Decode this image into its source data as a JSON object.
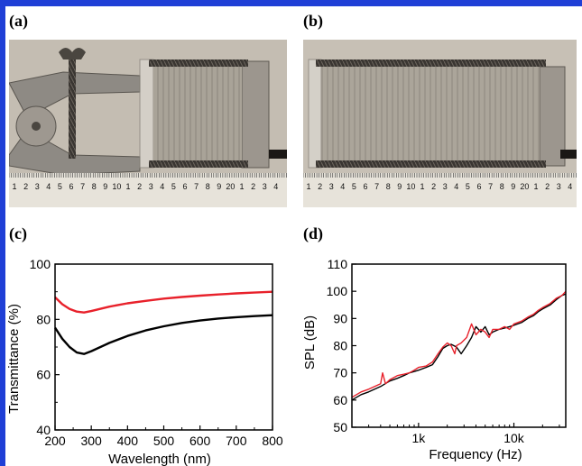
{
  "panels": {
    "a": "(a)",
    "b": "(b)",
    "c": "(c)",
    "d": "(d)"
  },
  "ruler_labels": [
    "1",
    "2",
    "3",
    "4",
    "5",
    "6",
    "7",
    "8",
    "9",
    "10",
    "1",
    "2",
    "3",
    "4",
    "5",
    "6",
    "7",
    "8",
    "9",
    "20",
    "1",
    "2",
    "3",
    "4"
  ],
  "colors": {
    "frame": "#1f3fd6",
    "red": "#e8212b",
    "black": "#000000"
  },
  "chart_data": [
    {
      "type": "line",
      "panel": "(c)",
      "title": "",
      "xlabel": "Wavelength (nm)",
      "ylabel": "Transmittance (%)",
      "xlim": [
        200,
        800
      ],
      "ylim": [
        40,
        100
      ],
      "xticks": [
        200,
        300,
        400,
        500,
        600,
        700,
        800
      ],
      "yticks": [
        40,
        60,
        80,
        100
      ],
      "grid": false,
      "series": [
        {
          "color": "#e8212b",
          "x": [
            200,
            220,
            240,
            260,
            280,
            300,
            350,
            400,
            450,
            500,
            550,
            600,
            650,
            700,
            750,
            800
          ],
          "y": [
            88,
            85.5,
            83.8,
            82.8,
            82.5,
            83.0,
            84.6,
            85.8,
            86.7,
            87.5,
            88.1,
            88.6,
            89.0,
            89.4,
            89.7,
            90.0
          ]
        },
        {
          "color": "#000000",
          "x": [
            200,
            220,
            240,
            260,
            280,
            300,
            350,
            400,
            450,
            500,
            550,
            600,
            650,
            700,
            750,
            800
          ],
          "y": [
            77,
            73,
            70,
            68,
            67.5,
            68.5,
            71.5,
            74.0,
            76.0,
            77.5,
            78.7,
            79.6,
            80.3,
            80.8,
            81.2,
            81.5
          ]
        }
      ]
    },
    {
      "type": "line",
      "panel": "(d)",
      "title": "",
      "xlabel": "Frequency (Hz)",
      "ylabel": "SPL (dB)",
      "xscale": "log",
      "xlim": [
        200,
        35000
      ],
      "ylim": [
        50,
        110
      ],
      "xticks": [
        1000,
        10000
      ],
      "xtick_labels": [
        "1k",
        "10k"
      ],
      "yticks": [
        50,
        60,
        70,
        80,
        90,
        100,
        110
      ],
      "grid": false,
      "series": [
        {
          "color": "#000000",
          "x": [
            200,
            250,
            300,
            400,
            500,
            600,
            700,
            800,
            900,
            1000,
            1200,
            1400,
            1600,
            1800,
            2000,
            2200,
            2500,
            2800,
            3200,
            3600,
            4000,
            4500,
            5000,
            5500,
            6000,
            7000,
            8000,
            9000,
            10000,
            12000,
            14000,
            16000,
            18000,
            20000,
            24000,
            28000,
            32000,
            35000
          ],
          "y": [
            60,
            62,
            63,
            65,
            67,
            68,
            69,
            70,
            70.5,
            71,
            72,
            73,
            76,
            79,
            80,
            80.5,
            79.5,
            77,
            80,
            83,
            87,
            85,
            87,
            84,
            85,
            86,
            86.5,
            87,
            87.5,
            88.5,
            90,
            91,
            92.5,
            93.5,
            95,
            97,
            98.5,
            99
          ]
        },
        {
          "color": "#e8212b",
          "x": [
            200,
            250,
            300,
            400,
            420,
            450,
            500,
            600,
            700,
            800,
            900,
            1000,
            1200,
            1400,
            1600,
            1800,
            2000,
            2200,
            2400,
            2500,
            2800,
            3200,
            3600,
            4000,
            4500,
            5000,
            5500,
            6000,
            7000,
            8000,
            9000,
            10000,
            12000,
            14000,
            16000,
            18000,
            20000,
            24000,
            28000,
            32000,
            35000
          ],
          "y": [
            61,
            63,
            64,
            66,
            70,
            66,
            67.5,
            69,
            69.5,
            70,
            71,
            72,
            72.5,
            74,
            77,
            79.5,
            81,
            80,
            77,
            80,
            81,
            83,
            88,
            84,
            86,
            85,
            83,
            86,
            86,
            87,
            86,
            88,
            89,
            90.5,
            91.5,
            93,
            94,
            95.5,
            97.5,
            98.5,
            100
          ]
        }
      ]
    }
  ]
}
